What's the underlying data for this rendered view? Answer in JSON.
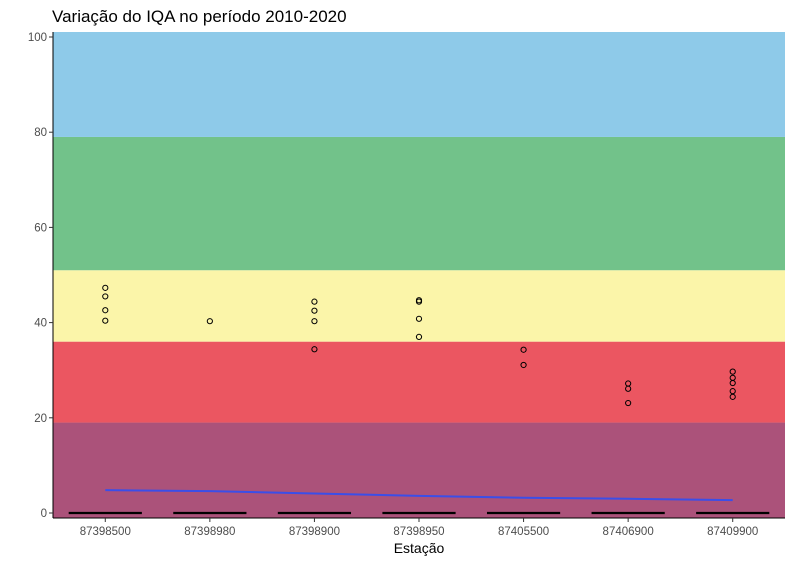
{
  "chart_data": {
    "type": "boxplot",
    "title": "Variação do IQA no período 2010-2020",
    "xlabel": "Estação",
    "ylabel": "",
    "ylim": [
      0,
      100
    ],
    "yticks": [
      0,
      20,
      40,
      60,
      80,
      100
    ],
    "grid": false,
    "categories": [
      "87398500",
      "87398980",
      "87398900",
      "87398950",
      "87405500",
      "87406900",
      "87409900"
    ],
    "background_bands": [
      {
        "from": 0,
        "to": 19,
        "color": "#ab527a"
      },
      {
        "from": 19,
        "to": 36,
        "color": "#eb5661"
      },
      {
        "from": 36,
        "to": 51,
        "color": "#fbf5a9"
      },
      {
        "from": 51,
        "to": 79,
        "color": "#72c28a"
      },
      {
        "from": 79,
        "to": 100,
        "color": "#8ecae9"
      }
    ],
    "box_medians": [
      0,
      0,
      0,
      0,
      0,
      0,
      0
    ],
    "outliers": [
      [
        47.3,
        45.5,
        42.6,
        40.4
      ],
      [
        40.3
      ],
      [
        44.4,
        42.5,
        40.3,
        34.4
      ],
      [
        44.7,
        44.4,
        40.8,
        37.0
      ],
      [
        34.3,
        31.1
      ],
      [
        27.2,
        26.1,
        23.1
      ],
      [
        29.7,
        28.4,
        27.3,
        25.6,
        24.4
      ]
    ],
    "trend_line": {
      "color": "#3b4ee8",
      "values": [
        4.8,
        4.6,
        4.1,
        3.6,
        3.2,
        3.0,
        2.7
      ]
    }
  }
}
